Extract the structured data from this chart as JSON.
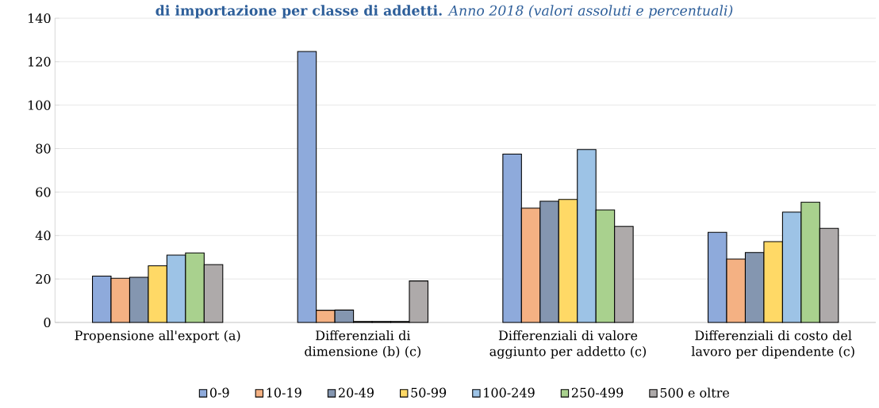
{
  "chart_data": {
    "type": "bar",
    "title": "**di importazione per classe di addetti.** *Anno 2018 (valori assoluti e percentuali)*",
    "categories": [
      "Propensione all'export (a)",
      "Differenziali di dimensione (b) (c)",
      "Differenziali di valore aggiunto per addetto  (c)",
      "Differenziali di costo del lavoro per dipendente (c)"
    ],
    "series": [
      {
        "name": "0-9",
        "color": "#8eaadb",
        "values": [
          21.3,
          124.7,
          77.5,
          41.5
        ]
      },
      {
        "name": "10-19",
        "color": "#f4b183",
        "values": [
          20.3,
          5.6,
          52.6,
          29.2
        ]
      },
      {
        "name": "20-49",
        "color": "#8496b0",
        "values": [
          20.8,
          5.7,
          55.8,
          32.2
        ]
      },
      {
        "name": "50-99",
        "color": "#ffd966",
        "values": [
          26.1,
          0.4,
          56.6,
          37.2
        ]
      },
      {
        "name": "100-249",
        "color": "#9dc3e6",
        "values": [
          31.0,
          0.4,
          79.6,
          50.8
        ]
      },
      {
        "name": "250-499",
        "color": "#a9d18e",
        "values": [
          32.0,
          0.4,
          51.8,
          55.3
        ]
      },
      {
        "name": "500 e oltre",
        "color": "#aeaaaa",
        "values": [
          26.6,
          19.1,
          44.2,
          43.3
        ]
      }
    ],
    "ylim": [
      0,
      140
    ],
    "yticks": [
      0,
      20,
      40,
      60,
      80,
      100,
      120,
      140
    ],
    "grid": "y",
    "legend": "bottom"
  }
}
